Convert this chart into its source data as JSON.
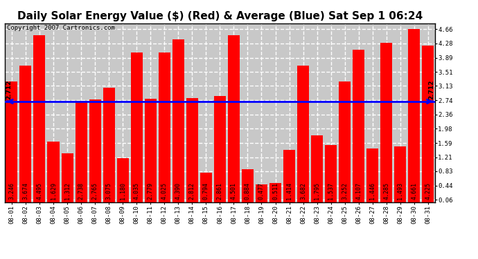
{
  "title": "Daily Solar Energy Value ($) (Red) & Average (Blue) Sat Sep 1 06:24",
  "copyright": "Copyright 2007 Cartronics.com",
  "average": 2.712,
  "categories": [
    "08-01",
    "08-02",
    "08-03",
    "08-04",
    "08-05",
    "08-06",
    "08-07",
    "08-08",
    "08-09",
    "08-10",
    "08-11",
    "08-12",
    "08-13",
    "08-14",
    "08-15",
    "08-16",
    "08-17",
    "08-18",
    "08-19",
    "08-20",
    "08-21",
    "08-22",
    "08-23",
    "08-24",
    "08-25",
    "08-26",
    "08-27",
    "08-28",
    "08-29",
    "08-30",
    "08-31"
  ],
  "values": [
    3.246,
    3.674,
    4.495,
    1.629,
    1.312,
    2.738,
    2.765,
    3.075,
    1.18,
    4.035,
    2.779,
    4.025,
    4.39,
    2.812,
    0.794,
    2.861,
    4.501,
    0.884,
    0.477,
    0.511,
    1.414,
    3.682,
    1.795,
    1.537,
    3.252,
    4.107,
    1.446,
    4.285,
    1.493,
    4.661,
    4.225
  ],
  "bar_color": "#FF0000",
  "avg_line_color": "#0000FF",
  "bg_color": "#FFFFFF",
  "plot_bg_color": "#C8C8C8",
  "grid_color": "#FFFFFF",
  "yticks": [
    0.06,
    0.44,
    0.83,
    1.21,
    1.59,
    1.98,
    2.36,
    2.74,
    3.13,
    3.51,
    3.89,
    4.28,
    4.66
  ],
  "ylim": [
    0.0,
    4.82
  ],
  "title_fontsize": 11,
  "tick_fontsize": 6.5,
  "label_fontsize": 6,
  "copyright_fontsize": 6.5
}
